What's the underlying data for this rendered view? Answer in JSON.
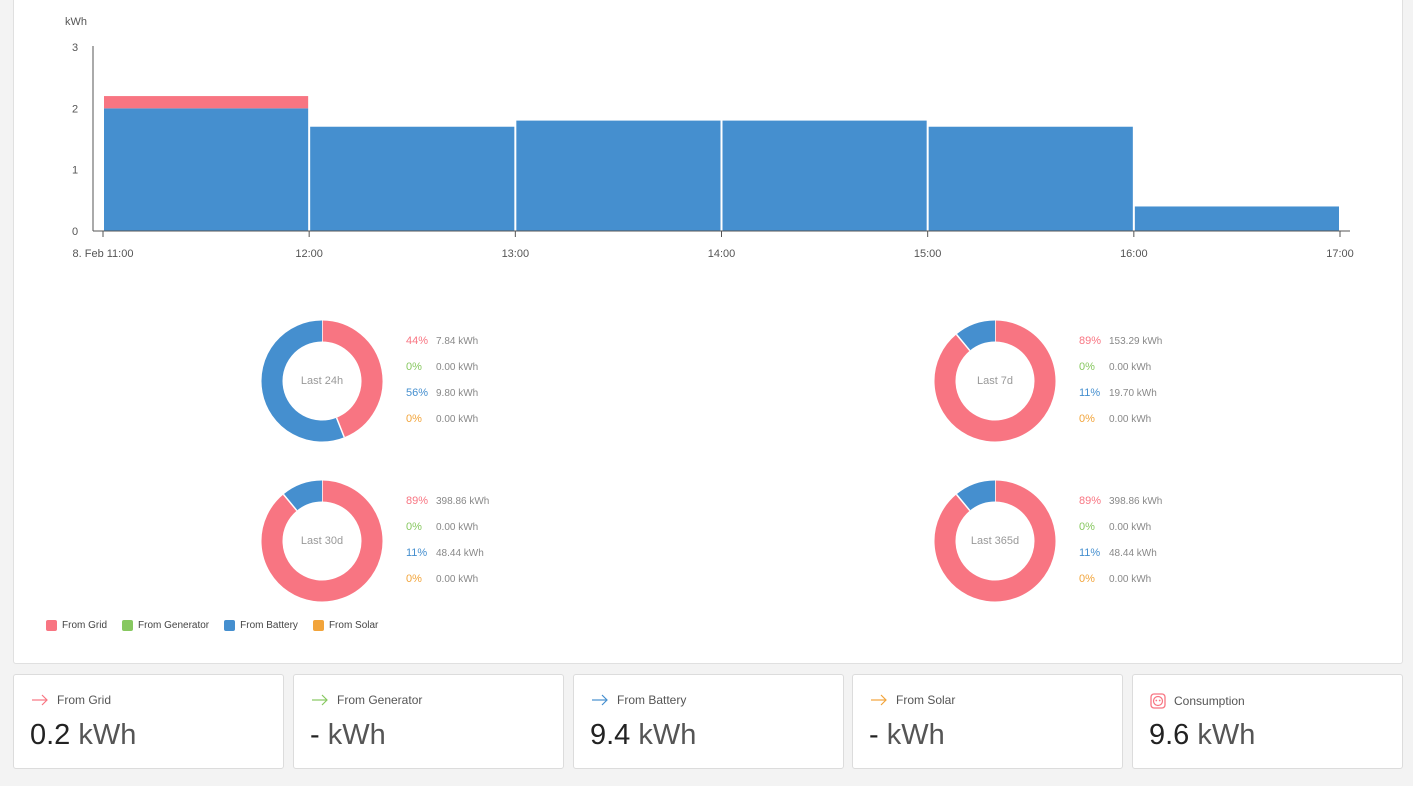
{
  "colors": {
    "grid": "#f87582",
    "generator": "#87c860",
    "battery": "#458fcf",
    "solar": "#f2a43a"
  },
  "chart_data": {
    "type": "bar",
    "stacked": true,
    "ylabel": "kWh",
    "ylim": [
      0,
      3
    ],
    "yticks": [
      "0",
      "1",
      "2",
      "3"
    ],
    "categories": [
      "11:00",
      "12:00",
      "13:00",
      "14:00",
      "15:00",
      "16:00"
    ],
    "xtick_labels": [
      "8. Feb 11:00",
      "12:00",
      "13:00",
      "14:00",
      "15:00",
      "16:00",
      "17:00"
    ],
    "series": [
      {
        "name": "From Battery",
        "color": "#458fcf",
        "values": [
          2.0,
          1.7,
          1.8,
          1.8,
          1.7,
          0.4
        ]
      },
      {
        "name": "From Grid",
        "color": "#f87582",
        "values": [
          0.2,
          0,
          0,
          0,
          0,
          0
        ]
      }
    ]
  },
  "donuts": [
    {
      "label": "Last 24h",
      "rows": [
        {
          "pct": "44%",
          "kwh": "7.84 kWh",
          "value": 44,
          "key": "grid"
        },
        {
          "pct": "0%",
          "kwh": "0.00 kWh",
          "value": 0,
          "key": "generator"
        },
        {
          "pct": "56%",
          "kwh": "9.80 kWh",
          "value": 56,
          "key": "battery"
        },
        {
          "pct": "0%",
          "kwh": "0.00 kWh",
          "value": 0,
          "key": "solar"
        }
      ]
    },
    {
      "label": "Last 7d",
      "rows": [
        {
          "pct": "89%",
          "kwh": "153.29 kWh",
          "value": 89,
          "key": "grid"
        },
        {
          "pct": "0%",
          "kwh": "0.00 kWh",
          "value": 0,
          "key": "generator"
        },
        {
          "pct": "11%",
          "kwh": "19.70 kWh",
          "value": 11,
          "key": "battery"
        },
        {
          "pct": "0%",
          "kwh": "0.00 kWh",
          "value": 0,
          "key": "solar"
        }
      ]
    },
    {
      "label": "Last 30d",
      "rows": [
        {
          "pct": "89%",
          "kwh": "398.86 kWh",
          "value": 89,
          "key": "grid"
        },
        {
          "pct": "0%",
          "kwh": "0.00 kWh",
          "value": 0,
          "key": "generator"
        },
        {
          "pct": "11%",
          "kwh": "48.44 kWh",
          "value": 11,
          "key": "battery"
        },
        {
          "pct": "0%",
          "kwh": "0.00 kWh",
          "value": 0,
          "key": "solar"
        }
      ]
    },
    {
      "label": "Last 365d",
      "rows": [
        {
          "pct": "89%",
          "kwh": "398.86 kWh",
          "value": 89,
          "key": "grid"
        },
        {
          "pct": "0%",
          "kwh": "0.00 kWh",
          "value": 0,
          "key": "generator"
        },
        {
          "pct": "11%",
          "kwh": "48.44 kWh",
          "value": 11,
          "key": "battery"
        },
        {
          "pct": "0%",
          "kwh": "0.00 kWh",
          "value": 0,
          "key": "solar"
        }
      ]
    }
  ],
  "legend": [
    {
      "label": "From Grid",
      "key": "grid"
    },
    {
      "label": "From Generator",
      "key": "generator"
    },
    {
      "label": "From Battery",
      "key": "battery"
    },
    {
      "label": "From Solar",
      "key": "solar"
    }
  ],
  "cards": [
    {
      "label": "From Grid",
      "value": "0.2",
      "unit": "kWh",
      "icon": "arrow-right-icon",
      "key": "grid"
    },
    {
      "label": "From Generator",
      "value": "-",
      "unit": "kWh",
      "icon": "arrow-right-icon",
      "key": "generator"
    },
    {
      "label": "From Battery",
      "value": "9.4",
      "unit": "kWh",
      "icon": "arrow-right-icon",
      "key": "battery"
    },
    {
      "label": "From Solar",
      "value": "-",
      "unit": "kWh",
      "icon": "arrow-right-icon",
      "key": "solar"
    },
    {
      "label": "Consumption",
      "value": "9.6",
      "unit": "kWh",
      "icon": "outlet-icon",
      "key": "grid"
    }
  ]
}
